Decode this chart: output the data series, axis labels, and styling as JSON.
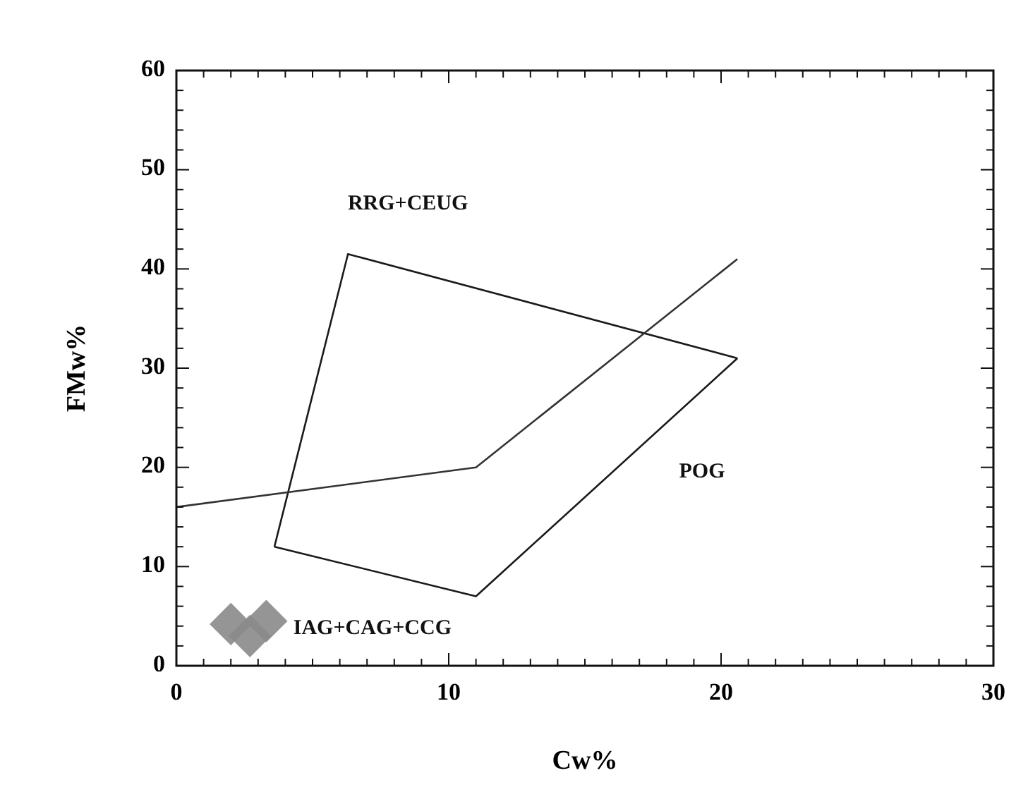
{
  "chart_data": {
    "type": "scatter",
    "xlabel": "Cw%",
    "ylabel": "FMw%",
    "xlim": [
      0,
      30
    ],
    "ylim": [
      0,
      60
    ],
    "xticks": [
      0,
      {
        "value": 1,
        "label": null
      },
      {
        "value": 2,
        "label": null
      },
      {
        "value": 3,
        "label": null
      },
      {
        "value": 4,
        "label": null
      },
      {
        "value": 5,
        "label": null
      },
      {
        "value": 6,
        "label": null
      },
      {
        "value": 7,
        "label": null
      },
      {
        "value": 8,
        "label": null
      },
      {
        "value": 9,
        "label": null
      },
      10,
      {
        "value": 11,
        "label": null
      },
      {
        "value": 12,
        "label": null
      },
      {
        "value": 13,
        "label": null
      },
      {
        "value": 14,
        "label": null
      },
      {
        "value": 15,
        "label": null
      },
      {
        "value": 16,
        "label": null
      },
      {
        "value": 17,
        "label": null
      },
      {
        "value": 18,
        "label": null
      },
      {
        "value": 19,
        "label": null
      },
      20,
      {
        "value": 21,
        "label": null
      },
      {
        "value": 22,
        "label": null
      },
      {
        "value": 23,
        "label": null
      },
      {
        "value": 24,
        "label": null
      },
      {
        "value": 25,
        "label": null
      },
      {
        "value": 26,
        "label": null
      },
      {
        "value": 27,
        "label": null
      },
      {
        "value": 28,
        "label": null
      },
      {
        "value": 29,
        "label": null
      },
      30
    ],
    "yticks": [
      0,
      {
        "value": 2,
        "label": null
      },
      {
        "value": 4,
        "label": null
      },
      {
        "value": 6,
        "label": null
      },
      {
        "value": 8,
        "label": null
      },
      10,
      {
        "value": 12,
        "label": null
      },
      {
        "value": 14,
        "label": null
      },
      {
        "value": 16,
        "label": null
      },
      {
        "value": 18,
        "label": null
      },
      20,
      {
        "value": 22,
        "label": null
      },
      {
        "value": 24,
        "label": null
      },
      {
        "value": 26,
        "label": null
      },
      {
        "value": 28,
        "label": null
      },
      30,
      {
        "value": 32,
        "label": null
      },
      {
        "value": 34,
        "label": null
      },
      {
        "value": 36,
        "label": null
      },
      {
        "value": 38,
        "label": null
      },
      40,
      {
        "value": 42,
        "label": null
      },
      {
        "value": 44,
        "label": null
      },
      {
        "value": 46,
        "label": null
      },
      {
        "value": 48,
        "label": null
      },
      50,
      {
        "value": 52,
        "label": null
      },
      {
        "value": 54,
        "label": null
      },
      {
        "value": 56,
        "label": null
      },
      {
        "value": 58,
        "label": null
      },
      60
    ],
    "grid": false,
    "series": [
      {
        "type": "line",
        "color": "#1a1a1a",
        "line_style": "solid",
        "marker": "none",
        "x": [
          3.6,
          6.3,
          20.6
        ],
        "values": [
          12,
          41.5,
          31
        ]
      },
      {
        "type": "line",
        "color": "#1a1a1a",
        "line_style": "solid",
        "marker": "none",
        "x": [
          3.6,
          11,
          20.6
        ],
        "values": [
          12,
          7,
          31
        ]
      },
      {
        "type": "line",
        "color": "#333333",
        "line_style": "solid",
        "marker": "none",
        "x": [
          0,
          11,
          20.6
        ],
        "values": [
          16,
          20,
          41
        ]
      },
      {
        "color": "#8a8a8a",
        "marker": "diamond",
        "x": [
          2.0,
          2.7,
          3.3
        ],
        "values": [
          4.2,
          3.0,
          4.5
        ]
      }
    ],
    "annotations": [
      "RRG+CEUG",
      "POG",
      "IAG+CAG+CCG"
    ]
  }
}
